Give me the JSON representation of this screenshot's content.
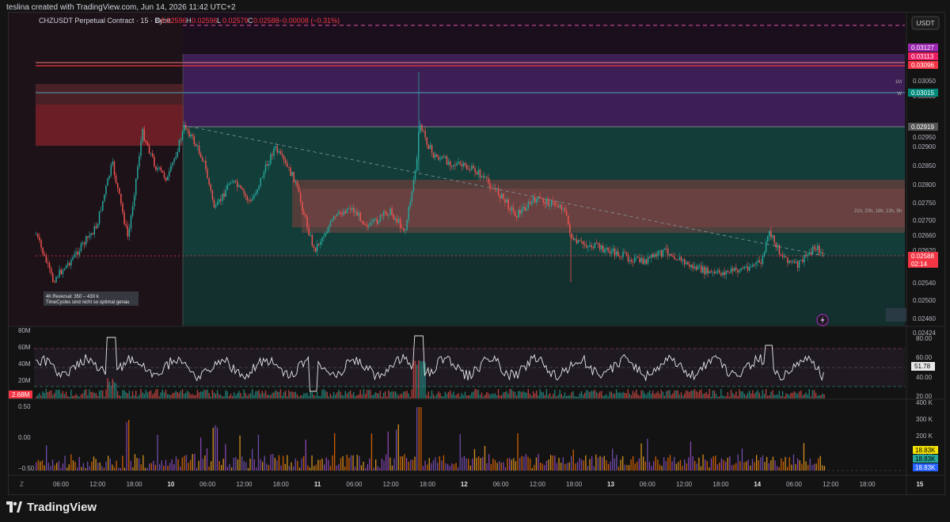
{
  "header": {
    "created_line": "teslina created with TradingView.com, Jun 14, 2026 11:42 UTC+2"
  },
  "symbol_bar": {
    "symbol": "CHZUSDT Perpetual Contract · 15 · Bybit",
    "o_label": "O",
    "o_value": "0.02596",
    "h_label": "H",
    "h_value": "0.02596",
    "l_label": "L",
    "l_value": "0.02579",
    "c_label": "C",
    "c_value": "0.02588",
    "change": "−0.00008 (−0.31%)"
  },
  "currency_button": "USDT",
  "annotation": {
    "line1": "4h Reversal: 350 – 430 k",
    "line2": "TimeCycles sind nicht so optimal genau"
  },
  "level_labels": {
    "monthly": "1M",
    "weekly": "W",
    "cycle_text": "21h, 20h, 18h, 13h, 9h"
  },
  "price_axis": {
    "ticks": [
      "0.03050",
      "0.03000",
      "0.02950",
      "0.02900",
      "0.02850",
      "0.02800",
      "0.02750",
      "0.02700",
      "0.02660",
      "0.02620",
      "0.02580",
      "0.02540",
      "0.02500",
      "0.02460",
      "0.02424"
    ],
    "tags": [
      {
        "text": "0.03127",
        "color": "#9c27b0"
      },
      {
        "text": "0.03113",
        "color": "#e91e63"
      },
      {
        "text": "0.03096",
        "color": "#f23645"
      },
      {
        "text": "0.03015",
        "color": "#00897b"
      },
      {
        "text": "0.02919",
        "color": "#555555"
      },
      {
        "text": "0.02588",
        "color": "#f23645"
      },
      {
        "text": "02:14",
        "color": "#f23645"
      }
    ]
  },
  "volume_panel": {
    "ticks": [
      "80M",
      "60M",
      "40M",
      "20M"
    ],
    "current_tag": "2.68M",
    "rsi_ticks": [
      "80.00",
      "60.00",
      "40.00",
      "20.00"
    ],
    "rsi_tag": "51.78"
  },
  "delta_panel": {
    "left_ticks": [
      "0.50",
      "0.00",
      "−0.50"
    ],
    "right_ticks": [
      "400 K",
      "300 K",
      "200 K",
      "100 K"
    ],
    "tags": [
      {
        "text": "18.83K",
        "color": "#f5e100",
        "text_color": "#000000"
      },
      {
        "text": "18.83K",
        "color": "#26a69a",
        "text_color": "#000000"
      },
      {
        "text": "18.83K",
        "color": "#2962ff",
        "text_color": "#ffffff"
      }
    ]
  },
  "time_axis": {
    "labels": [
      "06:00",
      "12:00",
      "18:00",
      "10",
      "06:00",
      "12:00",
      "18:00",
      "11",
      "06:00",
      "12:00",
      "18:00",
      "12",
      "06:00",
      "12:00",
      "18:00",
      "13",
      "06:00",
      "12:00",
      "18:00",
      "14",
      "06:00",
      "12:00",
      "18:00",
      "15"
    ],
    "corner": "Z"
  },
  "footer": {
    "brand": "TradingView"
  },
  "chart_data": {
    "type": "candlestick",
    "x_axis": "time (15-minute bars), Jun 9 – Jun 15",
    "price_range": [
      0.02424,
      0.0315
    ],
    "last_price": 0.02588,
    "key_levels": {
      "pink_dashed": 0.0315,
      "red_lines": [
        0.03113,
        0.03096
      ],
      "monthly": 0.0305,
      "weekly": 0.03015,
      "gray": 0.02919,
      "current": 0.02588
    },
    "zones": [
      {
        "kind": "purple supply",
        "from": 0.02919,
        "to": 0.03127
      },
      {
        "kind": "red supply (left)",
        "from": 0.0288,
        "to": 0.0303
      },
      {
        "kind": "red FVG",
        "from": 0.0266,
        "to": 0.0277
      },
      {
        "kind": "teal range",
        "from": 0.02424,
        "to": 0.02919
      }
    ],
    "rsi": {
      "last": 51.78,
      "range": [
        20,
        80
      ],
      "bands": [
        30,
        70
      ]
    },
    "volume_last": "2.68M"
  }
}
